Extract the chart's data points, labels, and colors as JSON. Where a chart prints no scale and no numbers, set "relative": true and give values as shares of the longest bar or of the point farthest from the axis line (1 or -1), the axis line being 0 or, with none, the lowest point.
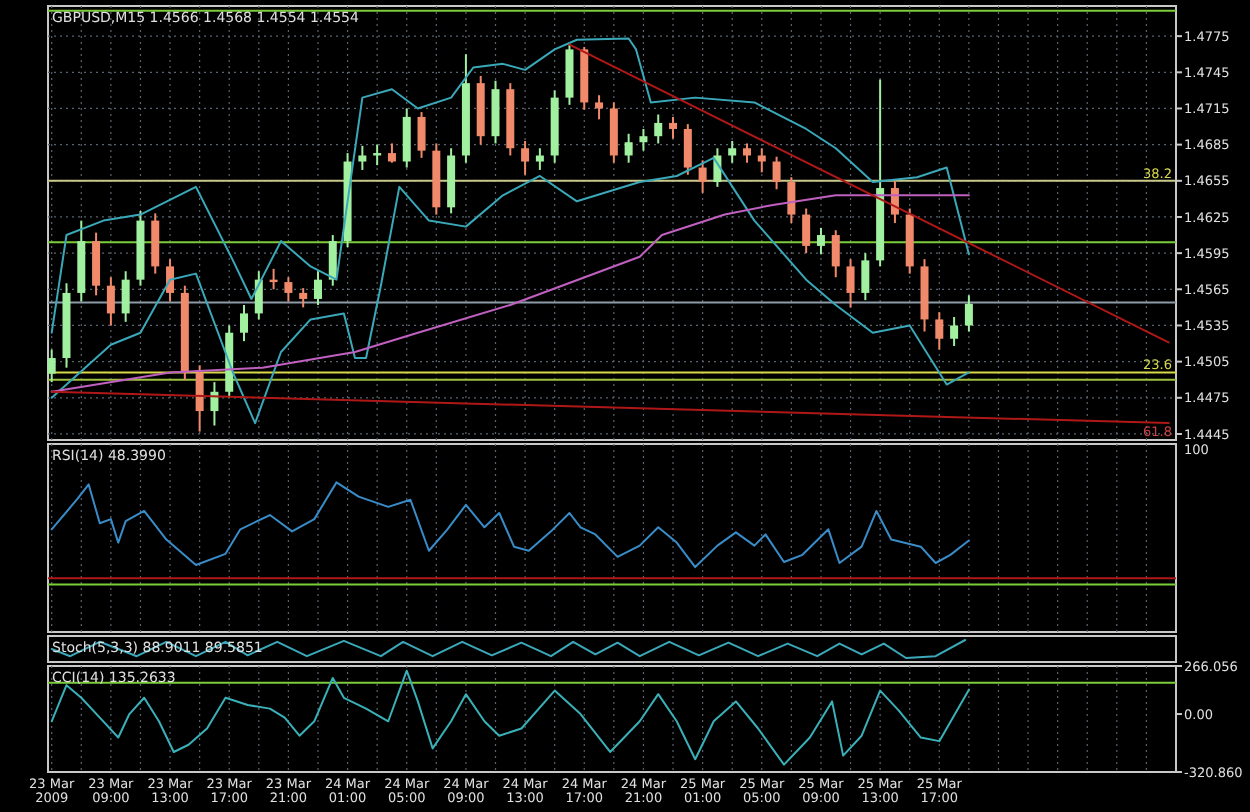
{
  "chart_data": [
    {
      "type": "candlestick",
      "title": "GBPUSD,M15 1.4566 1.4568 1.4554 1.4554",
      "xlim": [
        "2009-03-23T04:45",
        "2009-03-26T09:00"
      ],
      "ylim": [
        1.444,
        1.48
      ],
      "yticks": [
        1.4445,
        1.4475,
        1.4505,
        1.4535,
        1.4565,
        1.4595,
        1.4625,
        1.4655,
        1.4685,
        1.4715,
        1.4745,
        1.4775
      ],
      "grid": true,
      "tick_labels": "y",
      "xticks": [
        {
          "value": "2009-03-23T05:00",
          "label": null
        },
        {
          "value": "2009-03-23T07:00",
          "label": null
        },
        {
          "value": "2009-03-23T09:00",
          "label": null
        },
        {
          "value": "2009-03-23T11:00",
          "label": null
        },
        {
          "value": "2009-03-23T13:00",
          "label": null
        },
        {
          "value": "2009-03-23T15:00",
          "label": null
        },
        {
          "value": "2009-03-23T17:00",
          "label": null
        },
        {
          "value": "2009-03-23T19:00",
          "label": null
        },
        {
          "value": "2009-03-23T21:00",
          "label": null
        },
        {
          "value": "2009-03-23T23:00",
          "label": null
        },
        {
          "value": "2009-03-24T01:00",
          "label": null
        },
        {
          "value": "2009-03-24T03:00",
          "label": null
        },
        {
          "value": "2009-03-24T05:00",
          "label": null
        },
        {
          "value": "2009-03-24T07:00",
          "label": null
        },
        {
          "value": "2009-03-24T09:00",
          "label": null
        },
        {
          "value": "2009-03-24T11:00",
          "label": null
        },
        {
          "value": "2009-03-24T13:00",
          "label": null
        },
        {
          "value": "2009-03-24T15:00",
          "label": null
        },
        {
          "value": "2009-03-24T17:00",
          "label": null
        },
        {
          "value": "2009-03-24T19:00",
          "label": null
        },
        {
          "value": "2009-03-24T21:00",
          "label": null
        },
        {
          "value": "2009-03-24T23:00",
          "label": null
        },
        {
          "value": "2009-03-25T01:00",
          "label": null
        },
        {
          "value": "2009-03-25T03:00",
          "label": null
        },
        {
          "value": "2009-03-25T05:00",
          "label": null
        },
        {
          "value": "2009-03-25T07:00",
          "label": null
        },
        {
          "value": "2009-03-25T09:00",
          "label": null
        },
        {
          "value": "2009-03-25T11:00",
          "label": null
        },
        {
          "value": "2009-03-25T13:00",
          "label": null
        },
        {
          "value": "2009-03-25T15:00",
          "label": null
        },
        {
          "value": "2009-03-25T17:00",
          "label": null
        },
        {
          "value": "2009-03-25T19:00",
          "label": null
        },
        {
          "value": "2009-03-25T21:00",
          "label": null
        },
        {
          "value": "2009-03-25T23:00",
          "label": null
        },
        {
          "value": "2009-03-26T01:00",
          "label": null
        },
        {
          "value": "2009-03-26T03:00",
          "label": null
        },
        {
          "value": "2009-03-26T05:00",
          "label": null
        },
        {
          "value": "2009-03-26T07:00",
          "label": null
        }
      ],
      "annotations": [
        {
          "text": "38.2",
          "x": "2009-03-26T09:00",
          "y": 1.4655
        },
        {
          "text": "23.6",
          "x": "2009-03-26T09:00",
          "y": 1.4496
        },
        "61.8"
      ],
      "x": [
        "2009-03-23T05:00",
        "2009-03-23T06:00",
        "2009-03-23T07:00",
        "2009-03-23T08:00",
        "2009-03-23T09:00",
        "2009-03-23T10:00",
        "2009-03-23T11:00",
        "2009-03-23T12:00",
        "2009-03-23T13:00",
        "2009-03-23T14:00",
        "2009-03-23T15:00",
        "2009-03-23T16:00",
        "2009-03-23T17:00",
        "2009-03-23T18:00",
        "2009-03-23T19:00",
        "2009-03-23T20:00",
        "2009-03-23T21:00",
        "2009-03-23T22:00",
        "2009-03-23T23:00",
        "2009-03-24T00:00",
        "2009-03-24T01:00",
        "2009-03-24T02:00",
        "2009-03-24T03:00",
        "2009-03-24T04:00",
        "2009-03-24T05:00",
        "2009-03-24T06:00",
        "2009-03-24T07:00",
        "2009-03-24T08:00",
        "2009-03-24T09:00",
        "2009-03-24T10:00",
        "2009-03-24T11:00",
        "2009-03-24T12:00",
        "2009-03-24T13:00",
        "2009-03-24T14:00",
        "2009-03-24T15:00",
        "2009-03-24T16:00",
        "2009-03-24T17:00",
        "2009-03-24T18:00",
        "2009-03-24T19:00",
        "2009-03-24T20:00",
        "2009-03-24T21:00",
        "2009-03-24T22:00",
        "2009-03-24T23:00",
        "2009-03-25T00:00",
        "2009-03-25T01:00",
        "2009-03-25T02:00",
        "2009-03-25T03:00",
        "2009-03-25T04:00",
        "2009-03-25T05:00",
        "2009-03-25T06:00",
        "2009-03-25T07:00",
        "2009-03-25T08:00",
        "2009-03-25T09:00",
        "2009-03-25T10:00",
        "2009-03-25T11:00",
        "2009-03-25T12:00",
        "2009-03-25T13:00",
        "2009-03-25T14:00",
        "2009-03-25T15:00",
        "2009-03-25T16:00",
        "2009-03-25T17:00",
        "2009-03-25T18:00",
        "2009-03-25T19:00"
      ],
      "ohlc": [
        [
          1.4495,
          1.4515,
          1.4488,
          1.4508
        ],
        [
          1.4508,
          1.457,
          1.45,
          1.4562
        ],
        [
          1.4562,
          1.4622,
          1.4555,
          1.4605
        ],
        [
          1.4605,
          1.4612,
          1.456,
          1.4568
        ],
        [
          1.4568,
          1.4575,
          1.4535,
          1.4545
        ],
        [
          1.4545,
          1.458,
          1.4538,
          1.4573
        ],
        [
          1.4573,
          1.463,
          1.4568,
          1.4622
        ],
        [
          1.4622,
          1.4628,
          1.4578,
          1.4584
        ],
        [
          1.4584,
          1.459,
          1.4555,
          1.4562
        ],
        [
          1.4562,
          1.4568,
          1.449,
          1.4496
        ],
        [
          1.4496,
          1.4502,
          1.4447,
          1.4464
        ],
        [
          1.4464,
          1.4488,
          1.4452,
          1.448
        ],
        [
          1.448,
          1.4535,
          1.4475,
          1.4529
        ],
        [
          1.4529,
          1.4552,
          1.4522,
          1.4545
        ],
        [
          1.4545,
          1.458,
          1.454,
          1.4573
        ],
        [
          1.4573,
          1.4582,
          1.4565,
          1.4571
        ],
        [
          1.4571,
          1.4575,
          1.4555,
          1.4562
        ],
        [
          1.4562,
          1.4566,
          1.455,
          1.4557
        ],
        [
          1.4557,
          1.458,
          1.4552,
          1.4573
        ],
        [
          1.4573,
          1.461,
          1.4568,
          1.4605
        ],
        [
          1.4605,
          1.4678,
          1.46,
          1.4671
        ],
        [
          1.4671,
          1.4684,
          1.4664,
          1.4676
        ],
        [
          1.4676,
          1.4685,
          1.4668,
          1.4678
        ],
        [
          1.4678,
          1.4686,
          1.467,
          1.4671
        ],
        [
          1.4671,
          1.4715,
          1.4666,
          1.4708
        ],
        [
          1.4708,
          1.4712,
          1.4674,
          1.468
        ],
        [
          1.468,
          1.4686,
          1.4627,
          1.4633
        ],
        [
          1.4633,
          1.4682,
          1.4628,
          1.4676
        ],
        [
          1.4676,
          1.476,
          1.467,
          1.4736
        ],
        [
          1.4736,
          1.4742,
          1.4685,
          1.4692
        ],
        [
          1.4692,
          1.4738,
          1.4686,
          1.4731
        ],
        [
          1.4731,
          1.4736,
          1.4676,
          1.4682
        ],
        [
          1.4682,
          1.4688,
          1.466,
          1.4671
        ],
        [
          1.4671,
          1.4682,
          1.4664,
          1.4676
        ],
        [
          1.4676,
          1.473,
          1.467,
          1.4724
        ],
        [
          1.4724,
          1.4768,
          1.4718,
          1.4764
        ],
        [
          1.4764,
          1.4766,
          1.4714,
          1.472
        ],
        [
          1.472,
          1.4726,
          1.4706,
          1.4715
        ],
        [
          1.4715,
          1.472,
          1.467,
          1.4676
        ],
        [
          1.4676,
          1.4694,
          1.467,
          1.4687
        ],
        [
          1.4687,
          1.4698,
          1.468,
          1.4692
        ],
        [
          1.4692,
          1.471,
          1.4686,
          1.4703
        ],
        [
          1.4703,
          1.4708,
          1.469,
          1.4698
        ],
        [
          1.4698,
          1.4702,
          1.466,
          1.4666
        ],
        [
          1.4666,
          1.4672,
          1.4645,
          1.4654
        ],
        [
          1.4654,
          1.4682,
          1.465,
          1.4676
        ],
        [
          1.4676,
          1.4688,
          1.467,
          1.4682
        ],
        [
          1.4682,
          1.4686,
          1.467,
          1.4676
        ],
        [
          1.4676,
          1.4682,
          1.4662,
          1.4671
        ],
        [
          1.4671,
          1.4675,
          1.4648,
          1.4654
        ],
        [
          1.4654,
          1.4658,
          1.462,
          1.4627
        ],
        [
          1.4627,
          1.4632,
          1.4595,
          1.4601
        ],
        [
          1.4601,
          1.4616,
          1.4594,
          1.461
        ],
        [
          1.461,
          1.4614,
          1.4575,
          1.4584
        ],
        [
          1.4584,
          1.459,
          1.455,
          1.4562
        ],
        [
          1.4562,
          1.4595,
          1.4556,
          1.4589
        ],
        [
          1.4589,
          1.4739,
          1.4584,
          1.4649
        ],
        [
          1.4649,
          1.4655,
          1.462,
          1.4627
        ],
        [
          1.4627,
          1.4632,
          1.4578,
          1.4584
        ],
        [
          1.4584,
          1.459,
          1.453,
          1.454
        ],
        [
          1.454,
          1.4546,
          1.4515,
          1.4524
        ],
        [
          1.4524,
          1.4542,
          1.4518,
          1.4535
        ],
        [
          1.4535,
          1.456,
          1.453,
          1.4553
        ]
      ],
      "series": [
        {
          "type": "line",
          "color": "#3aa8b8",
          "x": [
            "2009-03-23T05:00",
            "2009-03-23T06:00",
            "2009-03-23T08:30",
            "2009-03-23T11:00",
            "2009-03-23T14:45",
            "2009-03-23T17:15",
            "2009-03-23T18:30",
            "2009-03-23T20:30",
            "2009-03-23T22:30",
            "2009-03-24T00:15",
            "2009-03-24T02:00",
            "2009-03-24T04:00",
            "2009-03-24T05:45",
            "2009-03-24T08:00",
            "2009-03-24T09:30",
            "2009-03-24T11:30",
            "2009-03-24T13:00",
            "2009-03-24T15:00",
            "2009-03-24T16:30",
            "2009-03-24T20:00",
            "2009-03-24T20:30",
            "2009-03-24T21:30",
            "2009-03-25T00:30",
            "2009-03-25T04:30",
            "2009-03-25T08:00",
            "2009-03-25T10:00",
            "2009-03-25T12:30",
            "2009-03-25T15:30",
            "2009-03-25T17:30",
            "2009-03-25T19:00"
          ],
          "values": [
            1.4529,
            1.461,
            1.4622,
            1.4627,
            1.465,
            1.4589,
            1.4557,
            1.4605,
            1.4584,
            1.4573,
            1.4724,
            1.4731,
            1.4715,
            1.4724,
            1.4749,
            1.4752,
            1.4747,
            1.4764,
            1.4772,
            1.4773,
            1.4764,
            1.472,
            1.4724,
            1.472,
            1.4698,
            1.4682,
            1.4654,
            1.4658,
            1.4666,
            1.4594
          ]
        },
        {
          "type": "line",
          "color": "#3aa8b8",
          "x": [
            "2009-03-23T05:00",
            "2009-03-23T09:00",
            "2009-03-23T11:00",
            "2009-03-23T13:00",
            "2009-03-23T14:45",
            "2009-03-23T17:15",
            "2009-03-23T18:45",
            "2009-03-23T20:30",
            "2009-03-23T22:30",
            "2009-03-24T00:45",
            "2009-03-24T01:30",
            "2009-03-24T02:15",
            "2009-03-24T03:15",
            "2009-03-24T04:30",
            "2009-03-24T06:30",
            "2009-03-24T09:00",
            "2009-03-24T11:30",
            "2009-03-24T14:00",
            "2009-03-24T16:30",
            "2009-03-24T20:45",
            "2009-03-24T23:15",
            "2009-03-25T01:45",
            "2009-03-25T04:30",
            "2009-03-25T08:00",
            "2009-03-25T10:00",
            "2009-03-25T12:30",
            "2009-03-25T15:00",
            "2009-03-25T17:30",
            "2009-03-25T19:00"
          ],
          "values": [
            1.4475,
            1.4519,
            1.4529,
            1.4573,
            1.4578,
            1.4496,
            1.4454,
            1.4513,
            1.454,
            1.4545,
            1.4508,
            1.4508,
            1.4568,
            1.465,
            1.4622,
            1.4617,
            1.4643,
            1.4659,
            1.4638,
            1.4654,
            1.4659,
            1.4674,
            1.4622,
            1.4573,
            1.4552,
            1.4529,
            1.4535,
            1.4486,
            1.4496
          ]
        },
        {
          "type": "line",
          "color": "#c060c0",
          "x": [
            "2009-03-23T05:00",
            "2009-03-23T13:00",
            "2009-03-23T19:15",
            "2009-03-24T01:30",
            "2009-03-24T05:45",
            "2009-03-24T12:00",
            "2009-03-24T20:45",
            "2009-03-24T22:15",
            "2009-03-25T02:30",
            "2009-03-25T05:45",
            "2009-03-25T10:00",
            "2009-03-25T19:00"
          ],
          "values": [
            1.448,
            1.4496,
            1.45,
            1.4513,
            1.4529,
            1.4552,
            1.4592,
            1.461,
            1.4627,
            1.4635,
            1.4643,
            1.4643
          ]
        },
        {
          "type": "line",
          "color": "#b01818",
          "x": [
            "2009-03-24T16:00",
            "2009-03-26T08:30"
          ],
          "values": [
            1.4768,
            1.4521
          ]
        },
        {
          "type": "line",
          "color": "#b01818",
          "x": [
            "2009-03-23T05:00",
            "2009-03-26T08:30"
          ],
          "values": [
            1.448,
            1.4454
          ]
        }
      ],
      "ref_lines": [
        {
          "axis": "y",
          "value": 1.4796,
          "color": "#7ccd3c"
        },
        {
          "axis": "y",
          "value": 1.4655,
          "color": "#c8c888"
        },
        {
          "axis": "y",
          "value": 1.4604,
          "color": "#7ccd3c"
        },
        {
          "axis": "y",
          "value": 1.4554,
          "color": "#8c9ca8"
        },
        {
          "axis": "y",
          "value": 1.4496,
          "color": "#d8d84a"
        },
        {
          "axis": "y",
          "value": 1.449,
          "color": "#a0c040"
        }
      ]
    },
    {
      "type": "line",
      "title": "RSI(14) 48.3990",
      "relative": true,
      "annotations": [
        "100"
      ],
      "xlim": [
        "2009-03-23T04:45",
        "2009-03-26T09:00"
      ],
      "grid": "x",
      "tick_labels": false,
      "xticks": [
        {
          "value": "2009-03-23T05:00",
          "label": null
        },
        {
          "value": "2009-03-23T07:00",
          "label": null
        },
        {
          "value": "2009-03-23T09:00",
          "label": null
        },
        {
          "value": "2009-03-23T11:00",
          "label": null
        },
        {
          "value": "2009-03-23T13:00",
          "label": null
        },
        {
          "value": "2009-03-23T15:00",
          "label": null
        },
        {
          "value": "2009-03-23T17:00",
          "label": null
        },
        {
          "value": "2009-03-23T19:00",
          "label": null
        },
        {
          "value": "2009-03-23T21:00",
          "label": null
        },
        {
          "value": "2009-03-23T23:00",
          "label": null
        },
        {
          "value": "2009-03-24T01:00",
          "label": null
        },
        {
          "value": "2009-03-24T03:00",
          "label": null
        },
        {
          "value": "2009-03-24T05:00",
          "label": null
        },
        {
          "value": "2009-03-24T07:00",
          "label": null
        },
        {
          "value": "2009-03-24T09:00",
          "label": null
        },
        {
          "value": "2009-03-24T11:00",
          "label": null
        },
        {
          "value": "2009-03-24T13:00",
          "label": null
        },
        {
          "value": "2009-03-24T15:00",
          "label": null
        },
        {
          "value": "2009-03-24T17:00",
          "label": null
        },
        {
          "value": "2009-03-24T19:00",
          "label": null
        },
        {
          "value": "2009-03-24T21:00",
          "label": null
        },
        {
          "value": "2009-03-24T23:00",
          "label": null
        },
        {
          "value": "2009-03-25T01:00",
          "label": null
        },
        {
          "value": "2009-03-25T03:00",
          "label": null
        },
        {
          "value": "2009-03-25T05:00",
          "label": null
        },
        {
          "value": "2009-03-25T07:00",
          "label": null
        },
        {
          "value": "2009-03-25T09:00",
          "label": null
        },
        {
          "value": "2009-03-25T11:00",
          "label": null
        },
        {
          "value": "2009-03-25T13:00",
          "label": null
        },
        {
          "value": "2009-03-25T15:00",
          "label": null
        },
        {
          "value": "2009-03-25T17:00",
          "label": null
        },
        {
          "value": "2009-03-25T19:00",
          "label": null
        },
        {
          "value": "2009-03-25T21:00",
          "label": null
        },
        {
          "value": "2009-03-25T23:00",
          "label": null
        },
        {
          "value": "2009-03-26T01:00",
          "label": null
        },
        {
          "value": "2009-03-26T03:00",
          "label": null
        },
        {
          "value": "2009-03-26T05:00",
          "label": null
        },
        {
          "value": "2009-03-26T07:00",
          "label": null
        }
      ],
      "series": [
        {
          "color": "#3a8cc8",
          "x": [
            "2009-03-23T05:00",
            "2009-03-23T06:45",
            "2009-03-23T07:30",
            "2009-03-23T08:15",
            "2009-03-23T09:00",
            "2009-03-23T09:30",
            "2009-03-23T10:00",
            "2009-03-23T11:15",
            "2009-03-23T12:45",
            "2009-03-23T14:45",
            "2009-03-23T16:45",
            "2009-03-23T17:45",
            "2009-03-23T19:45",
            "2009-03-23T21:15",
            "2009-03-23T22:45",
            "2009-03-24T00:15",
            "2009-03-24T01:45",
            "2009-03-24T03:45",
            "2009-03-24T05:15",
            "2009-03-24T06:30",
            "2009-03-24T07:45",
            "2009-03-24T09:00",
            "2009-03-24T10:15",
            "2009-03-24T11:15",
            "2009-03-24T12:15",
            "2009-03-24T13:15",
            "2009-03-24T14:45",
            "2009-03-24T16:00",
            "2009-03-24T16:45",
            "2009-03-24T17:45",
            "2009-03-24T19:15",
            "2009-03-24T20:45",
            "2009-03-24T22:00",
            "2009-03-24T23:15",
            "2009-03-25T00:30",
            "2009-03-25T02:00",
            "2009-03-25T03:15",
            "2009-03-25T04:30",
            "2009-03-25T05:15",
            "2009-03-25T06:30",
            "2009-03-25T07:45",
            "2009-03-25T09:30",
            "2009-03-25T10:15",
            "2009-03-25T11:45",
            "2009-03-25T12:45",
            "2009-03-25T13:45",
            "2009-03-25T15:45",
            "2009-03-25T16:45",
            "2009-03-25T17:45",
            "2009-03-25T19:00"
          ],
          "values": [
            0.54,
            0.84,
            0.98,
            0.6,
            0.64,
            0.41,
            0.62,
            0.72,
            0.44,
            0.19,
            0.3,
            0.54,
            0.68,
            0.52,
            0.64,
            1,
            0.86,
            0.76,
            0.83,
            0.33,
            0.54,
            0.78,
            0.56,
            0.7,
            0.37,
            0.33,
            0.52,
            0.7,
            0.56,
            0.49,
            0.27,
            0.38,
            0.56,
            0.41,
            0.17,
            0.38,
            0.51,
            0.38,
            0.49,
            0.22,
            0.29,
            0.54,
            0.21,
            0.37,
            0.72,
            0.44,
            0.37,
            0.21,
            0.29,
            0.43
          ]
        }
      ],
      "ref_lines": [
        {
          "axis": "y",
          "value": 0.06,
          "color": "#b01818"
        }
      ]
    },
    {
      "type": "line",
      "title": "Stoch(5,3,3) 88.9011 89.5851",
      "relative": true,
      "xlim": [
        "2009-03-23T04:45",
        "2009-03-26T09:00"
      ],
      "tick_labels": false,
      "series": [
        {
          "color": "#3aa8b8",
          "x": [
            "2009-03-23T05:00",
            "2009-03-23T06:15",
            "2009-03-23T08:15",
            "2009-03-23T10:45",
            "2009-03-23T12:45",
            "2009-03-23T14:45",
            "2009-03-23T16:45",
            "2009-03-23T18:15",
            "2009-03-23T20:15",
            "2009-03-23T22:15",
            "2009-03-24T00:45",
            "2009-03-24T03:15",
            "2009-03-24T04:45",
            "2009-03-24T06:45",
            "2009-03-24T08:45",
            "2009-03-24T10:45",
            "2009-03-24T12:45",
            "2009-03-24T14:45",
            "2009-03-24T16:15",
            "2009-03-24T17:45",
            "2009-03-24T19:15",
            "2009-03-24T20:45",
            "2009-03-24T22:45",
            "2009-03-25T00:45",
            "2009-03-25T02:45",
            "2009-03-25T04:45",
            "2009-03-25T06:45",
            "2009-03-25T08:45",
            "2009-03-25T10:15",
            "2009-03-25T11:45",
            "2009-03-25T13:15",
            "2009-03-25T14:45",
            "2009-03-25T16:45",
            "2009-03-25T18:45"
          ],
          "values": [
            0.5,
            0.1,
            0.9,
            0.1,
            0.9,
            0.1,
            0.9,
            0.15,
            0.9,
            0.1,
            0.95,
            0.1,
            0.9,
            0.1,
            0.9,
            0.15,
            0.85,
            0.1,
            0.9,
            0.2,
            0.85,
            0.1,
            0.9,
            0.15,
            0.85,
            0.1,
            0.8,
            0.1,
            0.8,
            0.2,
            0.8,
            0,
            0.1,
            1
          ]
        }
      ]
    },
    {
      "type": "line",
      "title": "CCI(14) 135.2633",
      "xlim": [
        "2009-03-23T04:45",
        "2009-03-26T09:00"
      ],
      "ylim": [
        -320.86,
        266.056
      ],
      "yticks": [
        {
          "value": 266.056,
          "label": "266.056"
        },
        {
          "value": 0,
          "label": "0.00"
        },
        {
          "value": -320.86,
          "label": "-320.860"
        }
      ],
      "grid": "x",
      "xticks": [
        {
          "value": "2009-03-23T05:00",
          "label": "23 Mar 2009"
        },
        {
          "value": "2009-03-23T07:00",
          "label": null
        },
        {
          "value": "2009-03-23T09:00",
          "label": "23 Mar 09:00"
        },
        {
          "value": "2009-03-23T11:00",
          "label": null
        },
        {
          "value": "2009-03-23T13:00",
          "label": "23 Mar 13:00"
        },
        {
          "value": "2009-03-23T15:00",
          "label": null
        },
        {
          "value": "2009-03-23T17:00",
          "label": "23 Mar 17:00"
        },
        {
          "value": "2009-03-23T19:00",
          "label": null
        },
        {
          "value": "2009-03-23T21:00",
          "label": "23 Mar 21:00"
        },
        {
          "value": "2009-03-23T23:00",
          "label": null
        },
        {
          "value": "2009-03-24T01:00",
          "label": "24 Mar 01:00"
        },
        {
          "value": "2009-03-24T03:00",
          "label": null
        },
        {
          "value": "2009-03-24T05:00",
          "label": "24 Mar 05:00"
        },
        {
          "value": "2009-03-24T07:00",
          "label": null
        },
        {
          "value": "2009-03-24T09:00",
          "label": "24 Mar 09:00"
        },
        {
          "value": "2009-03-24T11:00",
          "label": null
        },
        {
          "value": "2009-03-24T13:00",
          "label": "24 Mar 13:00"
        },
        {
          "value": "2009-03-24T15:00",
          "label": null
        },
        {
          "value": "2009-03-24T17:00",
          "label": "24 Mar 17:00"
        },
        {
          "value": "2009-03-24T19:00",
          "label": null
        },
        {
          "value": "2009-03-24T21:00",
          "label": "24 Mar 21:00"
        },
        {
          "value": "2009-03-24T23:00",
          "label": null
        },
        {
          "value": "2009-03-25T01:00",
          "label": "25 Mar 01:00"
        },
        {
          "value": "2009-03-25T03:00",
          "label": null
        },
        {
          "value": "2009-03-25T05:00",
          "label": "25 Mar 05:00"
        },
        {
          "value": "2009-03-25T07:00",
          "label": null
        },
        {
          "value": "2009-03-25T09:00",
          "label": "25 Mar 09:00"
        },
        {
          "value": "2009-03-25T11:00",
          "label": null
        },
        {
          "value": "2009-03-25T13:00",
          "label": "25 Mar 13:00"
        },
        {
          "value": "2009-03-25T15:00",
          "label": null
        },
        {
          "value": "2009-03-25T17:00",
          "label": "25 Mar 17:00"
        },
        {
          "value": "2009-03-25T19:00",
          "label": null
        },
        {
          "value": "2009-03-25T21:00",
          "label": null
        },
        {
          "value": "2009-03-25T23:00",
          "label": null
        },
        {
          "value": "2009-03-26T01:00",
          "label": null
        },
        {
          "value": "2009-03-26T03:00",
          "label": null
        },
        {
          "value": "2009-03-26T05:00",
          "label": null
        },
        {
          "value": "2009-03-26T07:00",
          "label": null
        }
      ],
      "series": [
        {
          "color": "#3ab0b8",
          "x": [
            "2009-03-23T05:00",
            "2009-03-23T06:00",
            "2009-03-23T07:00",
            "2009-03-23T08:15",
            "2009-03-23T09:30",
            "2009-03-23T10:15",
            "2009-03-23T11:15",
            "2009-03-23T12:15",
            "2009-03-23T13:15",
            "2009-03-23T14:15",
            "2009-03-23T15:30",
            "2009-03-23T16:45",
            "2009-03-23T18:15",
            "2009-03-23T19:45",
            "2009-03-23T20:45",
            "2009-03-23T21:45",
            "2009-03-23T22:45",
            "2009-03-24T00:00",
            "2009-03-24T00:45",
            "2009-03-24T02:15",
            "2009-03-24T03:45",
            "2009-03-24T05:00",
            "2009-03-24T05:45",
            "2009-03-24T06:45",
            "2009-03-24T08:00",
            "2009-03-24T09:00",
            "2009-03-24T10:15",
            "2009-03-24T11:15",
            "2009-03-24T12:45",
            "2009-03-24T15:00",
            "2009-03-24T16:45",
            "2009-03-24T18:45",
            "2009-03-24T20:45",
            "2009-03-24T22:00",
            "2009-03-24T23:15",
            "2009-03-25T00:30",
            "2009-03-25T01:45",
            "2009-03-25T03:15",
            "2009-03-25T04:45",
            "2009-03-25T06:30",
            "2009-03-25T08:15",
            "2009-03-25T09:45",
            "2009-03-25T10:30",
            "2009-03-25T11:45",
            "2009-03-25T13:00",
            "2009-03-25T14:15",
            "2009-03-25T15:45",
            "2009-03-25T17:00",
            "2009-03-25T19:00"
          ],
          "values": [
            -40,
            160,
            90,
            -20,
            -130,
            0,
            90,
            -40,
            -210,
            -170,
            -80,
            90,
            50,
            30,
            -20,
            -120,
            -40,
            200,
            90,
            30,
            -40,
            240,
            70,
            -190,
            -40,
            110,
            -40,
            -120,
            -80,
            130,
            0,
            -210,
            -40,
            110,
            -40,
            -250,
            -40,
            70,
            -80,
            -280,
            -130,
            70,
            -230,
            -120,
            130,
            20,
            -130,
            -150,
            135
          ]
        }
      ],
      "ref_lines": [
        {
          "axis": "y",
          "value": 173,
          "color": "#7ccd3c"
        }
      ]
    }
  ]
}
